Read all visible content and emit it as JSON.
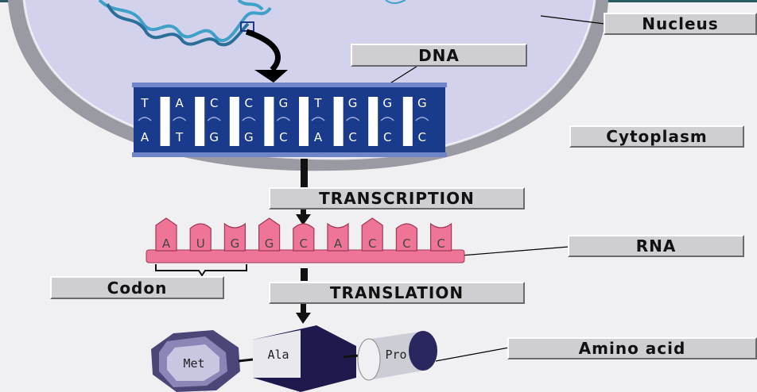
{
  "labels": {
    "nucleus": "Nucleus",
    "dna": "DNA",
    "cytoplasm": "Cytoplasm",
    "transcription": "TRANSCRIPTION",
    "rna": "RNA",
    "codon": "Codon",
    "translation": "TRANSLATION",
    "amino_acid": "Amino acid"
  },
  "dna": {
    "top_strand": [
      "T",
      "A",
      "C",
      "C",
      "G",
      "T",
      "G",
      "G",
      "G"
    ],
    "bottom_strand": [
      "A",
      "T",
      "G",
      "G",
      "C",
      "A",
      "C",
      "C",
      "C"
    ]
  },
  "rna": {
    "bases": [
      "A",
      "U",
      "G",
      "G",
      "C",
      "A",
      "C",
      "C",
      "C"
    ]
  },
  "amino_acids": [
    "Met",
    "Ala",
    "Pro"
  ],
  "colors": {
    "nucleus_fill": "#d2d2ec",
    "dna_blue": "#1a3a8c",
    "rna_pink": "#ee7598",
    "label_bg": "#cfcfd3",
    "helix": "#3fa0c8",
    "amino_purple": "#1e1a4e"
  }
}
